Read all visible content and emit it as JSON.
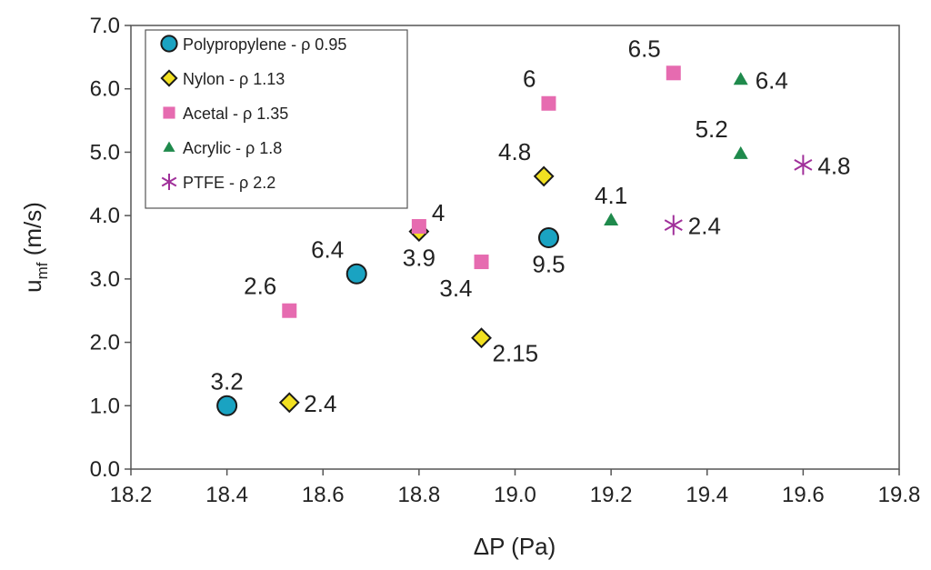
{
  "chart_data": {
    "type": "scatter",
    "title": "",
    "xlabel": "ΔP (Pa)",
    "ylabel": {
      "base": "u",
      "subscript": "mf",
      "suffix": " (m/s)"
    },
    "xlim": [
      18.2,
      19.8
    ],
    "ylim": [
      0.0,
      7.0
    ],
    "xticks": [
      18.2,
      18.4,
      18.6,
      18.8,
      19.0,
      19.2,
      19.4,
      19.6,
      19.8
    ],
    "yticks": [
      0.0,
      1.0,
      2.0,
      3.0,
      4.0,
      5.0,
      6.0,
      7.0
    ],
    "grid": false,
    "legend_position": "top-left",
    "series": [
      {
        "name": "Polypropylene - ρ 0.95",
        "marker": "circle",
        "color": "#1aa3c2",
        "points": [
          {
            "x": 18.4,
            "y": 1.0,
            "label": "3.2",
            "label_pos": "above"
          },
          {
            "x": 18.67,
            "y": 3.08,
            "label": "6.4",
            "label_pos": "above-left"
          },
          {
            "x": 19.07,
            "y": 3.65,
            "label": "9.5",
            "label_pos": "below"
          }
        ]
      },
      {
        "name": "Nylon - ρ 1.13",
        "marker": "diamond",
        "color": "#f2e021",
        "points": [
          {
            "x": 18.53,
            "y": 1.05,
            "label": "2.4",
            "label_pos": "right"
          },
          {
            "x": 18.8,
            "y": 3.75,
            "label": "3.9",
            "label_pos": "below"
          },
          {
            "x": 18.93,
            "y": 2.07,
            "label": "2.15",
            "label_pos": "below-right"
          },
          {
            "x": 19.06,
            "y": 4.62,
            "label": "4.8",
            "label_pos": "above-left"
          }
        ]
      },
      {
        "name": "Acetal - ρ 1.35",
        "marker": "square",
        "color": "#e66bb0",
        "points": [
          {
            "x": 18.53,
            "y": 2.5,
            "label": "2.6",
            "label_pos": "above-left"
          },
          {
            "x": 18.8,
            "y": 3.83,
            "label": "4",
            "label_pos": "above-right"
          },
          {
            "x": 18.93,
            "y": 3.27,
            "label": "3.4",
            "label_pos": "below-left"
          },
          {
            "x": 19.07,
            "y": 5.77,
            "label": "6",
            "label_pos": "above-left"
          },
          {
            "x": 19.33,
            "y": 6.25,
            "label": "6.5",
            "label_pos": "above-left"
          }
        ]
      },
      {
        "name": "Acrylic - ρ 1.8",
        "marker": "triangle",
        "color": "#1f8a4c",
        "points": [
          {
            "x": 19.2,
            "y": 3.93,
            "label": "4.1",
            "label_pos": "above"
          },
          {
            "x": 19.47,
            "y": 4.98,
            "label": "5.2",
            "label_pos": "above-left"
          },
          {
            "x": 19.47,
            "y": 6.15,
            "label": "6.4",
            "label_pos": "right"
          }
        ]
      },
      {
        "name": "PTFE - ρ 2.2",
        "marker": "asterisk",
        "color": "#a0309a",
        "points": [
          {
            "x": 19.33,
            "y": 3.85,
            "label": "2.4",
            "label_pos": "right"
          },
          {
            "x": 19.6,
            "y": 4.8,
            "label": "4.8",
            "label_pos": "right"
          }
        ]
      }
    ]
  }
}
